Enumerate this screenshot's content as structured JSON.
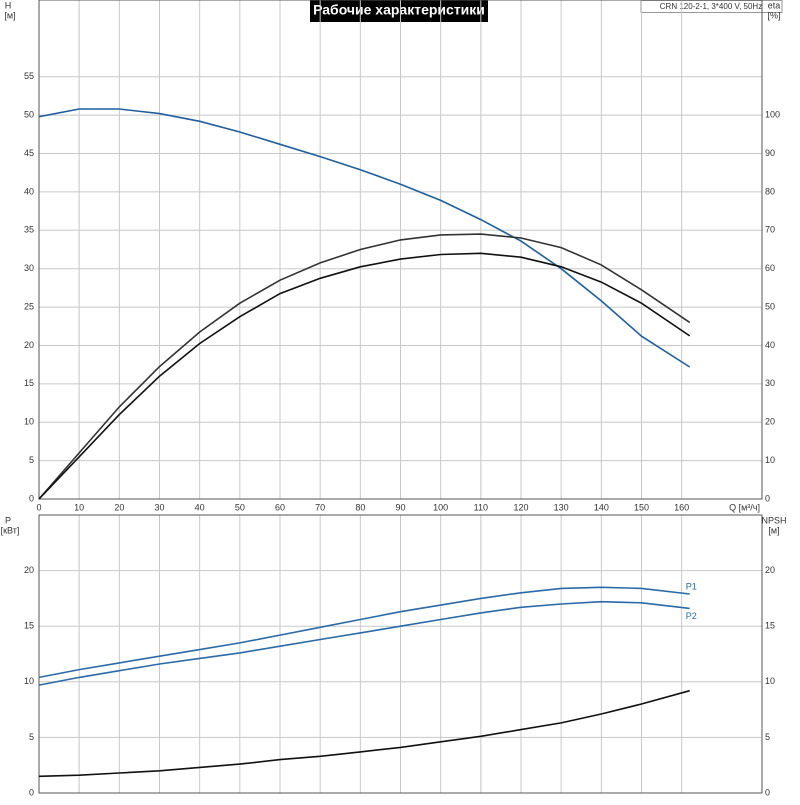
{
  "chart_data": [
    {
      "type": "line",
      "title": "Рабочие характеристики",
      "subtitle": "CRN 120-2-1, 3*400 V, 50Hz",
      "y_label": "H",
      "y_unit": "[м]",
      "y2_label": "eta",
      "y2_unit": "[%]",
      "x_label": "Q [м³/ч]",
      "x": [
        0,
        10,
        20,
        30,
        40,
        50,
        60,
        70,
        80,
        90,
        100,
        110,
        120,
        130,
        140,
        150,
        162
      ],
      "xlim": [
        0,
        180
      ],
      "xticks": [
        0,
        10,
        20,
        30,
        40,
        50,
        60,
        70,
        80,
        90,
        100,
        110,
        120,
        130,
        140,
        150,
        160
      ],
      "ylim": [
        0,
        65
      ],
      "yticks": [
        0,
        5,
        10,
        15,
        20,
        25,
        30,
        35,
        40,
        45,
        50,
        55
      ],
      "y2lim": [
        0,
        130
      ],
      "y2ticks": [
        0,
        10,
        20,
        30,
        40,
        50,
        60,
        70,
        80,
        90,
        100
      ],
      "grid": true,
      "series": [
        {
          "color": "#1f5fa0",
          "values": [
            49.8,
            50.8,
            50.8,
            50.2,
            49.2,
            47.8,
            46.2,
            44.6,
            42.9,
            41.0,
            38.9,
            36.4,
            33.6,
            30.0,
            25.8,
            21.2,
            17.2
          ]
        },
        {
          "color": "#333333",
          "axis": "y2",
          "values": [
            0,
            12,
            24,
            34.5,
            43.5,
            51,
            57,
            61.5,
            65,
            67.5,
            68.8,
            69,
            68,
            65.5,
            61,
            54.5,
            46
          ]
        },
        {
          "color": "#111111",
          "axis": "y2",
          "values": [
            0,
            11,
            22,
            32,
            40.5,
            47.5,
            53.5,
            57.5,
            60.5,
            62.5,
            63.7,
            64,
            63,
            60.5,
            56.5,
            51,
            42.5
          ]
        }
      ]
    },
    {
      "type": "line",
      "y_label": "P",
      "y_unit": "[кВт]",
      "y2_label": "NPSH",
      "y2_unit": "[м]",
      "x": [
        0,
        10,
        20,
        30,
        40,
        50,
        60,
        70,
        80,
        90,
        100,
        110,
        120,
        130,
        140,
        150,
        162
      ],
      "xlim": [
        0,
        180
      ],
      "ylim": [
        0,
        25
      ],
      "yticks": [
        0,
        5,
        10,
        15,
        20
      ],
      "y2lim": [
        0,
        25
      ],
      "y2ticks": [
        0,
        5,
        10,
        15,
        20
      ],
      "grid": true,
      "series": [
        {
          "name": "P1",
          "color": "#2a6aa8",
          "values": [
            10.4,
            11.1,
            11.7,
            12.3,
            12.9,
            13.5,
            14.2,
            14.9,
            15.6,
            16.3,
            16.9,
            17.5,
            18.0,
            18.4,
            18.5,
            18.4,
            17.9
          ]
        },
        {
          "name": "P2",
          "color": "#2a6aa8",
          "values": [
            9.7,
            10.4,
            11.0,
            11.6,
            12.1,
            12.6,
            13.2,
            13.8,
            14.4,
            15.0,
            15.6,
            16.2,
            16.7,
            17.0,
            17.2,
            17.1,
            16.6
          ]
        },
        {
          "color": "#111111",
          "axis": "y2",
          "values": [
            1.5,
            1.6,
            1.8,
            2.0,
            2.3,
            2.6,
            3.0,
            3.3,
            3.7,
            4.1,
            4.6,
            5.1,
            5.7,
            6.3,
            7.1,
            8.0,
            9.2
          ]
        }
      ]
    }
  ]
}
